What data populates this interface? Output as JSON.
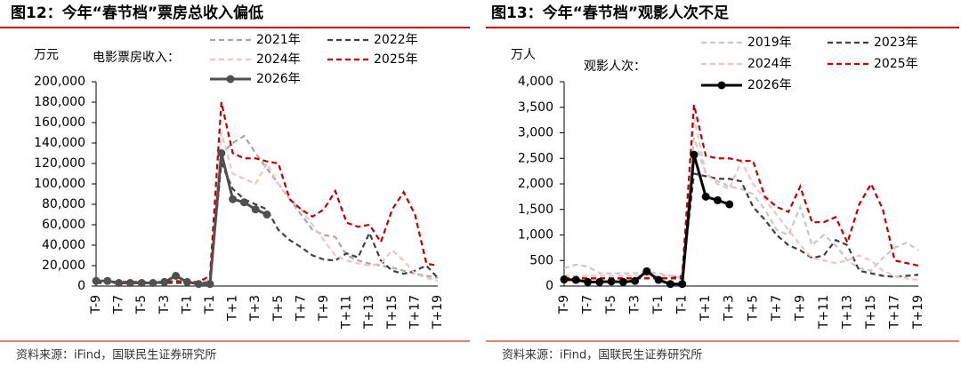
{
  "chart_data": [
    {
      "type": "line",
      "title": "图12：今年“春节档”票房总收入偏低",
      "unit": "万元",
      "legend_title": "电影票房收入：",
      "source": "资料来源：iFind，国联民生证券研究所",
      "categories": [
        "T-9",
        null,
        "T-7",
        null,
        "T-5",
        null,
        "T-3",
        null,
        "T-1",
        null,
        "T-1",
        null,
        "T+1",
        null,
        "T+3",
        null,
        "T+5",
        null,
        "T+7",
        null,
        "T+9",
        null,
        "T+11",
        null,
        "T+13",
        null,
        "T+15",
        null,
        "T+17",
        null,
        "T+19"
      ],
      "ylim": [
        0,
        200000
      ],
      "yticks": [
        0,
        {
          "value": 20000,
          "label": "20,000"
        },
        {
          "value": 40000,
          "label": "40,000"
        },
        {
          "value": 60000,
          "label": "60,000"
        },
        {
          "value": 80000,
          "label": "80,000"
        },
        {
          "value": 100000,
          "label": "100,000"
        },
        {
          "value": 120000,
          "label": "120,000"
        },
        {
          "value": 140000,
          "label": "140,000"
        },
        {
          "value": 160000,
          "label": "160,000"
        },
        {
          "value": 180000,
          "label": "180,000"
        },
        {
          "value": 200000,
          "label": "200,000"
        }
      ],
      "series": [
        {
          "name": "2021年",
          "color": "#a6a6a6",
          "dashed": true,
          "values": [
            3000,
            3000,
            3000,
            3000,
            3000,
            3000,
            3000,
            4000,
            3000,
            3000,
            5000,
            130000,
            140000,
            147000,
            130000,
            115000,
            100000,
            85000,
            70000,
            55000,
            50000,
            48000,
            30000,
            25000,
            22000,
            20000,
            18000,
            15000,
            12000,
            10000,
            8000
          ]
        },
        {
          "name": "2022年",
          "color": "#404040",
          "dashed": true,
          "values": [
            3000,
            3000,
            3000,
            3000,
            3000,
            3000,
            3000,
            3000,
            3000,
            3000,
            5000,
            120000,
            95000,
            85000,
            80000,
            75000,
            55000,
            45000,
            38000,
            30000,
            26000,
            25000,
            32000,
            28000,
            52000,
            25000,
            15000,
            12000,
            15000,
            20000,
            8000
          ]
        },
        {
          "name": "2024年",
          "color": "#f0c4c4",
          "dashed": true,
          "values": [
            4000,
            4000,
            4000,
            4000,
            4000,
            4000,
            4000,
            5000,
            4000,
            4000,
            6000,
            150000,
            110000,
            105000,
            100000,
            120000,
            100000,
            85000,
            75000,
            60000,
            45000,
            30000,
            25000,
            22000,
            20000,
            22000,
            35000,
            25000,
            12000,
            8000,
            5000
          ]
        },
        {
          "name": "2025年",
          "color": "#c00000",
          "dashed": true,
          "values": [
            4000,
            4000,
            4000,
            4000,
            4000,
            4000,
            4000,
            5000,
            4000,
            4000,
            10000,
            180000,
            130000,
            125000,
            125000,
            122000,
            120000,
            85000,
            75000,
            68000,
            75000,
            93000,
            62000,
            58000,
            60000,
            43000,
            75000,
            92000,
            70000,
            22000,
            20000
          ]
        },
        {
          "name": "2026年",
          "color": "#505050",
          "dashed": false,
          "marker": true,
          "values": [
            5000,
            5000,
            3000,
            3000,
            3000,
            3000,
            4000,
            10000,
            4000,
            2000,
            2000,
            130000,
            85000,
            82000,
            75000,
            70000,
            null,
            null,
            null,
            null,
            null,
            null,
            null,
            null,
            null,
            null,
            null,
            null,
            null,
            null,
            null
          ]
        }
      ]
    },
    {
      "type": "line",
      "title": "图13：今年“春节档”观影人次不足",
      "unit": "万人",
      "legend_title": "观影人次：",
      "source": "资料来源：iFind，国联民生证券研究所",
      "categories": [
        "T-9",
        null,
        "T-7",
        null,
        "T-5",
        null,
        "T-3",
        null,
        "T-1",
        null,
        "T-1",
        null,
        "T+1",
        null,
        "T+3",
        null,
        "T+5",
        null,
        "T+7",
        null,
        "T+9",
        null,
        "T+11",
        null,
        "T+13",
        null,
        "T+15",
        null,
        "T+17",
        null,
        "T+19"
      ],
      "ylim": [
        0,
        4000
      ],
      "yticks": [
        0,
        500,
        {
          "value": 1000,
          "label": "1,000"
        },
        {
          "value": 1500,
          "label": "1,500"
        },
        {
          "value": 2000,
          "label": "2,000"
        },
        {
          "value": 2500,
          "label": "2,500"
        },
        {
          "value": 3000,
          "label": "3,000"
        },
        {
          "value": 3500,
          "label": "3,500"
        },
        {
          "value": 4000,
          "label": "4,000"
        }
      ],
      "series": [
        {
          "name": "2019年",
          "color": "#c8c8c8",
          "dashed": true,
          "values": [
            350,
            420,
            380,
            250,
            250,
            250,
            250,
            280,
            250,
            200,
            150,
            2900,
            2200,
            2050,
            1950,
            1900,
            1800,
            1500,
            1100,
            1000,
            1550,
            800,
            1000,
            800,
            500,
            350,
            300,
            550,
            750,
            850,
            700
          ]
        },
        {
          "name": "2023年",
          "color": "#404040",
          "dashed": true,
          "values": [
            150,
            150,
            150,
            150,
            150,
            150,
            150,
            150,
            150,
            150,
            150,
            2200,
            2150,
            2100,
            2100,
            2050,
            1550,
            1300,
            1000,
            800,
            700,
            550,
            600,
            900,
            800,
            300,
            250,
            200,
            180,
            200,
            220
          ]
        },
        {
          "name": "2024年",
          "color": "#f0c4c4",
          "dashed": true,
          "values": [
            200,
            200,
            200,
            200,
            200,
            200,
            200,
            200,
            200,
            200,
            200,
            3300,
            2200,
            2000,
            1900,
            2450,
            2000,
            1700,
            1400,
            1100,
            800,
            550,
            500,
            450,
            500,
            600,
            500,
            300,
            200,
            150,
            120
          ]
        },
        {
          "name": "2025年",
          "color": "#c00000",
          "dashed": true,
          "values": [
            150,
            150,
            150,
            150,
            150,
            150,
            150,
            150,
            150,
            150,
            200,
            3550,
            2550,
            2500,
            2500,
            2450,
            2450,
            1750,
            1550,
            1450,
            1950,
            1250,
            1250,
            1350,
            850,
            1600,
            2000,
            1500,
            500,
            450,
            400
          ]
        },
        {
          "name": "2026年",
          "color": "#000000",
          "dashed": false,
          "marker": true,
          "values": [
            130,
            120,
            80,
            80,
            90,
            80,
            100,
            290,
            120,
            40,
            40,
            2570,
            1750,
            1680,
            1600,
            null,
            null,
            null,
            null,
            null,
            null,
            null,
            null,
            null,
            null,
            null,
            null,
            null,
            null,
            null,
            null
          ]
        }
      ]
    }
  ]
}
